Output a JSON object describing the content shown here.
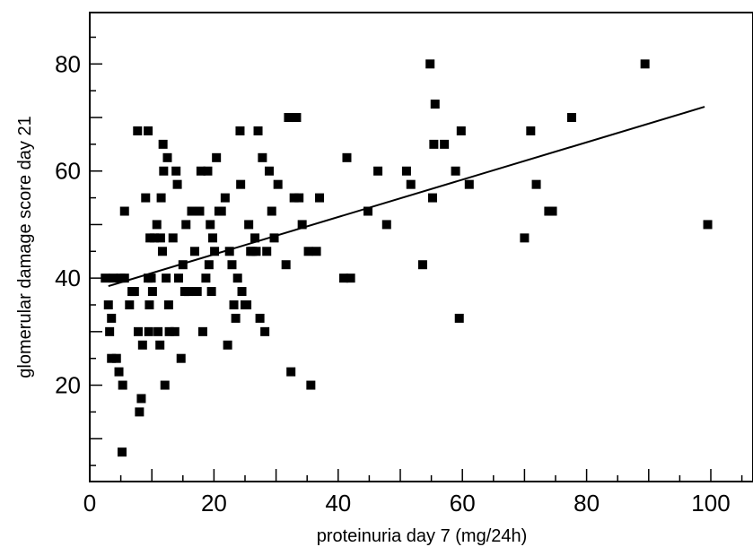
{
  "chart_data": {
    "type": "scatter",
    "title": "",
    "xlabel": "proteinuria day 7 (mg/24h)",
    "ylabel": "glomerular damage score day 21",
    "xlim": [
      0,
      108
    ],
    "ylim": [
      2,
      88
    ],
    "x_ticks": [
      0,
      20,
      40,
      60,
      80,
      100
    ],
    "y_ticks": [
      20,
      40,
      60,
      80
    ],
    "grid": false,
    "colors": {
      "points": "#000000",
      "trendline": "#000000",
      "frame": "#000000"
    },
    "series": [
      {
        "x": [
          2.5,
          3.0,
          3.2,
          3.5,
          3.5,
          3.8,
          4.3,
          4.7,
          5.0,
          5.3,
          5.2,
          5.6,
          5.6,
          6.4,
          6.8,
          7.2,
          7.7,
          7.8,
          8.0,
          8.3,
          8.5,
          9.0,
          9.4,
          9.6,
          9.7,
          9.4,
          10.1,
          9.5,
          9.9,
          10.4,
          10.8,
          11.0,
          11.3,
          11.4,
          11.7,
          11.8,
          11.9,
          12.1,
          11.5,
          12.3,
          12.5,
          12.7,
          12.8,
          13.4,
          13.7,
          13.9,
          14.1,
          14.3,
          14.7,
          15.0,
          15.3,
          15.5,
          15.9,
          16.4,
          16.9,
          17.3,
          17.7,
          17.9,
          18.2,
          18.7,
          19.0,
          19.2,
          19.4,
          19.6,
          19.8,
          20.1,
          20.4,
          20.8,
          21.2,
          21.8,
          22.2,
          22.5,
          22.9,
          23.2,
          23.5,
          23.8,
          24.2,
          24.5,
          24.3,
          25.0,
          25.3,
          25.6,
          25.9,
          26.2,
          26.6,
          26.8,
          27.1,
          27.4,
          27.8,
          28.2,
          28.5,
          28.9,
          29.3,
          29.7,
          30.3,
          31.6,
          32.0,
          32.4,
          32.9,
          33.3,
          33.7,
          34.2,
          35.2,
          35.6,
          36.5,
          37.0,
          40.9,
          41.4,
          42.0,
          44.8,
          46.4,
          47.8,
          51.0,
          51.7,
          53.6,
          54.8,
          55.2,
          55.4,
          55.6,
          57.1,
          58.9,
          59.5,
          59.8,
          61.1,
          70.0,
          71.0,
          71.9,
          73.9,
          74.5,
          77.6,
          89.4,
          99.5
        ],
        "y": [
          40.0,
          35.0,
          30.0,
          32.5,
          25.0,
          40.0,
          25.0,
          22.5,
          40.0,
          20.0,
          7.5,
          52.5,
          40.0,
          35.0,
          37.5,
          37.5,
          67.5,
          30.0,
          15.0,
          17.5,
          27.5,
          55.0,
          40.0,
          35.0,
          47.5,
          67.5,
          37.5,
          30.0,
          40.0,
          47.5,
          50.0,
          30.0,
          27.5,
          47.5,
          45.0,
          65.0,
          60.0,
          20.0,
          55.0,
          40.0,
          62.5,
          35.0,
          30.0,
          47.5,
          30.0,
          60.0,
          57.5,
          40.0,
          25.0,
          42.5,
          37.5,
          50.0,
          37.5,
          52.5,
          45.0,
          37.5,
          52.5,
          60.0,
          30.0,
          40.0,
          60.0,
          42.5,
          50.0,
          37.5,
          47.5,
          45.0,
          62.5,
          52.5,
          52.5,
          55.0,
          27.5,
          45.0,
          42.5,
          35.0,
          32.5,
          40.0,
          67.5,
          37.5,
          57.5,
          35.0,
          35.0,
          50.0,
          45.0,
          45.0,
          47.5,
          45.0,
          67.5,
          32.5,
          62.5,
          30.0,
          45.0,
          60.0,
          52.5,
          47.5,
          57.5,
          42.5,
          70.0,
          22.5,
          55.0,
          70.0,
          55.0,
          50.0,
          45.0,
          20.0,
          45.0,
          55.0,
          40.0,
          62.5,
          40.0,
          52.5,
          60.0,
          50.0,
          60.0,
          57.5,
          42.5,
          80.0,
          55.0,
          65.0,
          72.5,
          65.0,
          60.0,
          32.5,
          67.5,
          57.5,
          47.5,
          67.5,
          57.5,
          52.5,
          52.5,
          70.0,
          80.0,
          50.0
        ]
      }
    ],
    "trendline": {
      "x": [
        3,
        99
      ],
      "y": [
        38.5,
        72.0
      ]
    }
  }
}
